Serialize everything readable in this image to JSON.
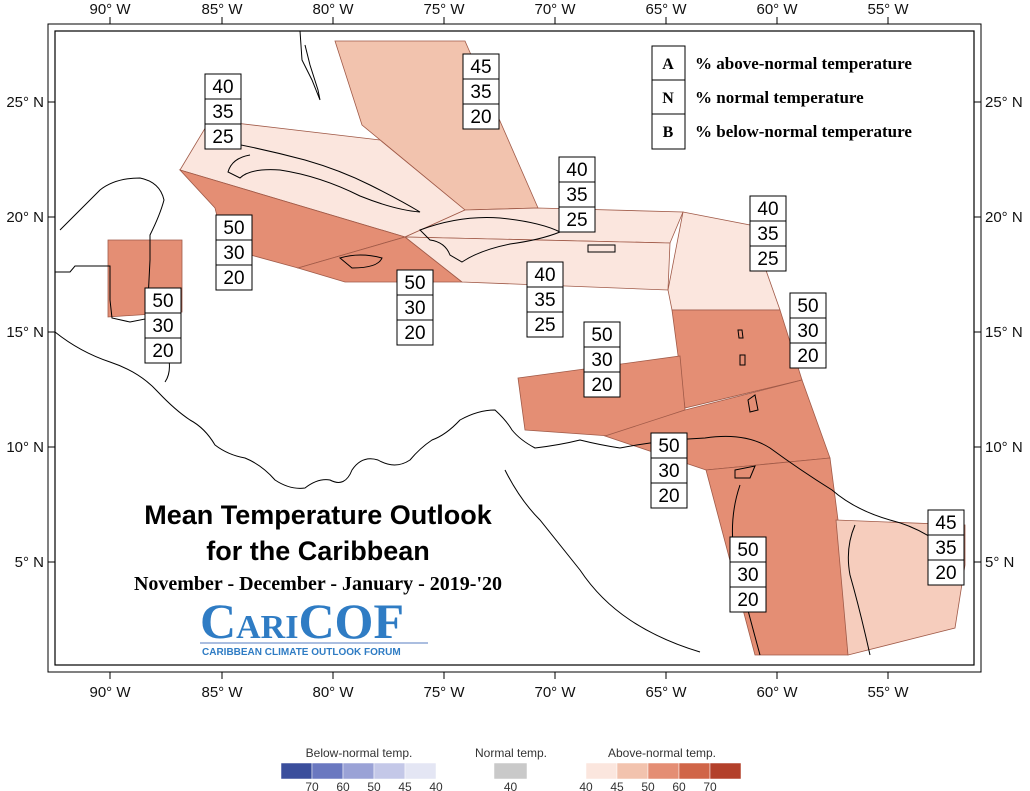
{
  "lon_labels": [
    "90° W",
    "85° W",
    "80° W",
    "75° W",
    "70° W",
    "65° W",
    "60° W",
    "55° W"
  ],
  "lat_labels": [
    "25° N",
    "20° N",
    "15° N",
    "10° N",
    "5° N"
  ],
  "legend": {
    "items": [
      {
        "key": "A",
        "text": "% above-normal temperature"
      },
      {
        "key": "N",
        "text": "% normal temperature"
      },
      {
        "key": "B",
        "text": "% below-normal temperature"
      }
    ]
  },
  "title": {
    "line1": "Mean Temperature Outlook",
    "line2": "for the Caribbean",
    "period": "November - December - January - 2019-'20"
  },
  "logo": {
    "name": "CARICOF",
    "full_name": "CARIBBEAN CLIMATE OUTLOOK FORUM"
  },
  "regions": [
    {
      "id": "bahamas",
      "values": [
        "45",
        "35",
        "20"
      ],
      "fill": "#f2c3ae"
    },
    {
      "id": "cuba",
      "values": [
        "40",
        "35",
        "25"
      ],
      "fill": "#fbe6de"
    },
    {
      "id": "western-cuba-cayman",
      "values": [
        "50",
        "30",
        "20"
      ],
      "fill": "#e48e74"
    },
    {
      "id": "belize",
      "values": [
        "50",
        "30",
        "20"
      ],
      "fill": "#e48e74"
    },
    {
      "id": "jamaica",
      "values": [
        "50",
        "30",
        "20"
      ],
      "fill": "#e48e74"
    },
    {
      "id": "turks-caicos",
      "values": [
        "40",
        "35",
        "25"
      ],
      "fill": "#fbe6de"
    },
    {
      "id": "hispaniola-puerto-rico",
      "values": [
        "40",
        "35",
        "25"
      ],
      "fill": "#fbe6de"
    },
    {
      "id": "leeward-islands",
      "values": [
        "40",
        "35",
        "25"
      ],
      "fill": "#fbe6de"
    },
    {
      "id": "windward-islands",
      "values": [
        "50",
        "30",
        "20"
      ],
      "fill": "#e48e74"
    },
    {
      "id": "abc-islands",
      "values": [
        "50",
        "30",
        "20"
      ],
      "fill": "#e48e74"
    },
    {
      "id": "trinidad-tobago",
      "values": [
        "50",
        "30",
        "20"
      ],
      "fill": "#e48e74"
    },
    {
      "id": "guyana",
      "values": [
        "50",
        "30",
        "20"
      ],
      "fill": "#e48e74"
    },
    {
      "id": "suriname-french-guiana",
      "values": [
        "45",
        "35",
        "20"
      ],
      "fill": "#f6cdbd"
    }
  ],
  "colorbar": {
    "below": {
      "label": "Below-normal temp.",
      "ticks": [
        "70",
        "60",
        "50",
        "45",
        "40"
      ],
      "colors": [
        "#3a4e9c",
        "#6a78c0",
        "#9aa2d6",
        "#c4c8e8",
        "#e4e6f4"
      ]
    },
    "normal": {
      "label": "Normal temp.",
      "ticks": [
        "40"
      ],
      "colors": [
        "#c9c9c9"
      ]
    },
    "above": {
      "label": "Above-normal temp.",
      "ticks": [
        "40",
        "45",
        "50",
        "60",
        "70"
      ],
      "colors": [
        "#fbe6de",
        "#f2c3ae",
        "#e48e74",
        "#d06548",
        "#b3402a"
      ]
    }
  }
}
